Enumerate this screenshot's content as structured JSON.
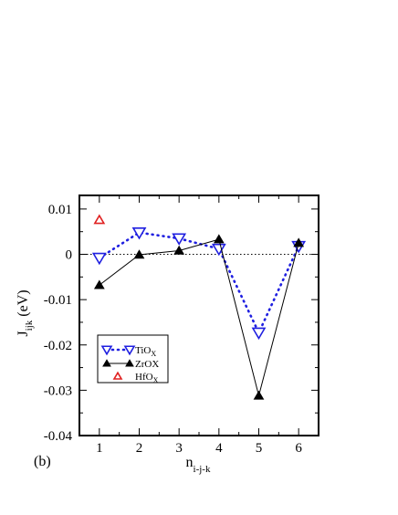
{
  "chart_data": {
    "type": "line",
    "panel_label": "(b)",
    "xlabel": {
      "main": "n",
      "sub": "i-j-k"
    },
    "ylabel": {
      "main": "J",
      "sub": "ijk",
      "unit": " (eV)"
    },
    "xlim": [
      0.5,
      6.5
    ],
    "ylim": [
      -0.04,
      0.013
    ],
    "x_ticks": [
      1,
      2,
      3,
      4,
      5,
      6
    ],
    "x_tick_labels": [
      "1",
      "2",
      "3",
      "4",
      "5",
      "6"
    ],
    "y_ticks": [
      0.01,
      0,
      -0.01,
      -0.02,
      -0.03,
      -0.04
    ],
    "y_tick_labels": [
      "0.01",
      "0",
      "-0.01",
      "-0.02",
      "-0.03",
      "-0.04"
    ],
    "grid": false,
    "zero_line": true,
    "legend_position": "lower-left",
    "series": [
      {
        "key": "tiox",
        "name": "TiO",
        "name_sub": "X",
        "color": "#1f1fe0",
        "marker": "triangle-down-open",
        "line": "dotted",
        "x": [
          1,
          2,
          3,
          4,
          5,
          6
        ],
        "y": [
          -0.0008,
          0.0048,
          0.0035,
          0.0012,
          -0.0173,
          0.0018
        ]
      },
      {
        "key": "zrox",
        "name": "ZrOX",
        "name_sub": "",
        "color": "#000000",
        "marker": "triangle-up-filled",
        "line": "solid",
        "x": [
          1,
          2,
          3,
          4,
          5,
          6
        ],
        "y": [
          -0.0068,
          -0.0001,
          0.0008,
          0.0033,
          -0.0312,
          0.0025
        ]
      },
      {
        "key": "hfox",
        "name": "HfO",
        "name_sub": "X",
        "color": "#e02020",
        "marker": "triangle-up-open",
        "line": "none",
        "x": [
          1
        ],
        "y": [
          0.0076
        ]
      }
    ]
  }
}
